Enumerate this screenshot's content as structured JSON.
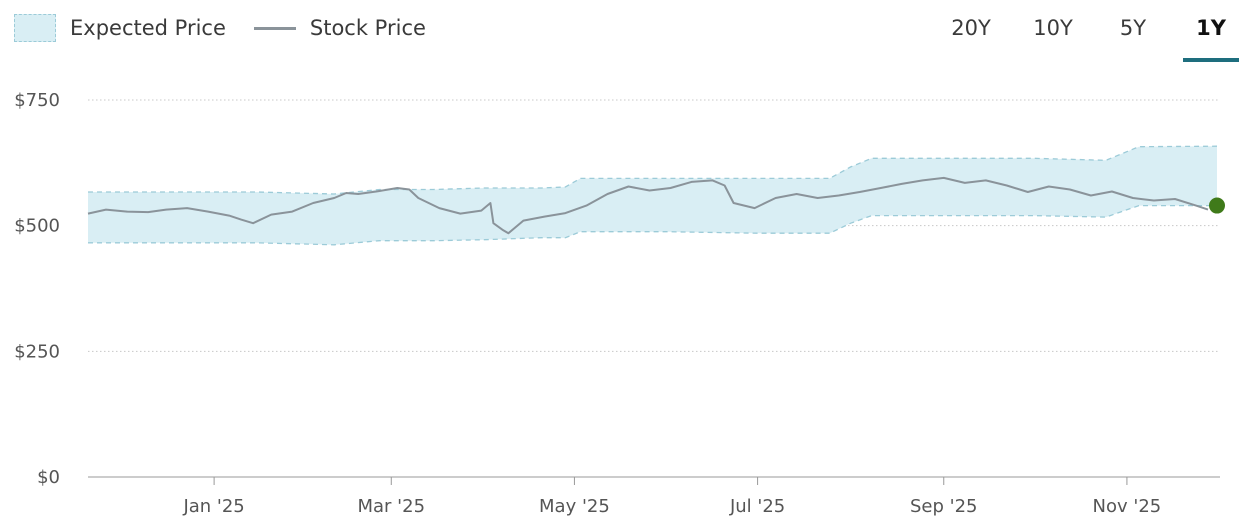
{
  "legend": {
    "band_label": "Expected Price",
    "line_label": "Stock Price"
  },
  "tabs": [
    {
      "label": "20Y",
      "active": false
    },
    {
      "label": "10Y",
      "active": false
    },
    {
      "label": "5Y",
      "active": false
    },
    {
      "label": "1Y",
      "active": true
    }
  ],
  "colors": {
    "band_fill": "#d9eef4",
    "band_edge": "#9ccbd8",
    "line": "#8a939a",
    "marker": "#3f7a1a",
    "accent": "#1e6e7e"
  },
  "chart_data": {
    "type": "line",
    "title": "",
    "xlabel": "",
    "ylabel": "",
    "ylim": [
      0,
      750
    ],
    "yticks": [
      0,
      250,
      500,
      750
    ],
    "ytick_labels": [
      "$0",
      "$250",
      "$500",
      "$750"
    ],
    "xticks": [
      "2025-01-01",
      "2025-03-01",
      "2025-05-01",
      "2025-07-01",
      "2025-09-01",
      "2025-11-01"
    ],
    "xtick_labels": [
      "Jan '25",
      "Mar '25",
      "May '25",
      "Jul '25",
      "Sep '25",
      "Nov '25"
    ],
    "xlim": [
      "2024-11-20",
      "2025-12-02"
    ],
    "grid": true,
    "legend_position": "top-left",
    "series": [
      {
        "name": "Expected Price",
        "kind": "band",
        "x": [
          "2024-11-20",
          "2024-12-15",
          "2025-01-15",
          "2025-02-10",
          "2025-02-25",
          "2025-03-15",
          "2025-04-01",
          "2025-04-20",
          "2025-04-28",
          "2025-05-03",
          "2025-06-01",
          "2025-07-01",
          "2025-07-25",
          "2025-08-01",
          "2025-08-08",
          "2025-09-01",
          "2025-10-01",
          "2025-10-25",
          "2025-11-05",
          "2025-12-01"
        ],
        "upper": [
          567,
          567,
          567,
          563,
          572,
          572,
          575,
          575,
          577,
          594,
          594,
          594,
          594,
          617,
          634,
          634,
          634,
          630,
          657,
          658
        ],
        "lower": [
          466,
          466,
          466,
          462,
          470,
          470,
          472,
          476,
          476,
          488,
          488,
          485,
          485,
          505,
          520,
          520,
          520,
          517,
          540,
          540
        ]
      },
      {
        "name": "Stock Price",
        "kind": "line",
        "x": [
          "2024-11-20",
          "2024-11-26",
          "2024-12-03",
          "2024-12-10",
          "2024-12-16",
          "2024-12-23",
          "2024-12-30",
          "2025-01-06",
          "2025-01-10",
          "2025-01-14",
          "2025-01-20",
          "2025-01-27",
          "2025-02-03",
          "2025-02-10",
          "2025-02-14",
          "2025-02-18",
          "2025-02-24",
          "2025-03-03",
          "2025-03-07",
          "2025-03-10",
          "2025-03-17",
          "2025-03-24",
          "2025-03-31",
          "2025-04-03",
          "2025-04-04",
          "2025-04-07",
          "2025-04-09",
          "2025-04-14",
          "2025-04-21",
          "2025-04-28",
          "2025-05-05",
          "2025-05-12",
          "2025-05-19",
          "2025-05-26",
          "2025-06-02",
          "2025-06-09",
          "2025-06-16",
          "2025-06-20",
          "2025-06-23",
          "2025-06-30",
          "2025-07-07",
          "2025-07-14",
          "2025-07-21",
          "2025-07-28",
          "2025-08-04",
          "2025-08-11",
          "2025-08-18",
          "2025-08-25",
          "2025-09-01",
          "2025-09-08",
          "2025-09-15",
          "2025-09-22",
          "2025-09-29",
          "2025-10-06",
          "2025-10-13",
          "2025-10-20",
          "2025-10-27",
          "2025-11-03",
          "2025-11-10",
          "2025-11-17",
          "2025-11-24",
          "2025-11-28"
        ],
        "y": [
          524,
          532,
          528,
          527,
          532,
          535,
          528,
          520,
          512,
          505,
          522,
          528,
          545,
          555,
          565,
          563,
          568,
          575,
          572,
          555,
          535,
          524,
          530,
          545,
          505,
          492,
          485,
          510,
          518,
          525,
          540,
          563,
          578,
          570,
          575,
          587,
          590,
          580,
          545,
          535,
          555,
          563,
          555,
          560,
          567,
          575,
          583,
          590,
          595,
          585,
          590,
          580,
          567,
          578,
          572,
          560,
          568,
          555,
          550,
          553,
          540,
          532
        ]
      }
    ],
    "last_point": {
      "x": "2025-12-01",
      "y": 540
    }
  }
}
